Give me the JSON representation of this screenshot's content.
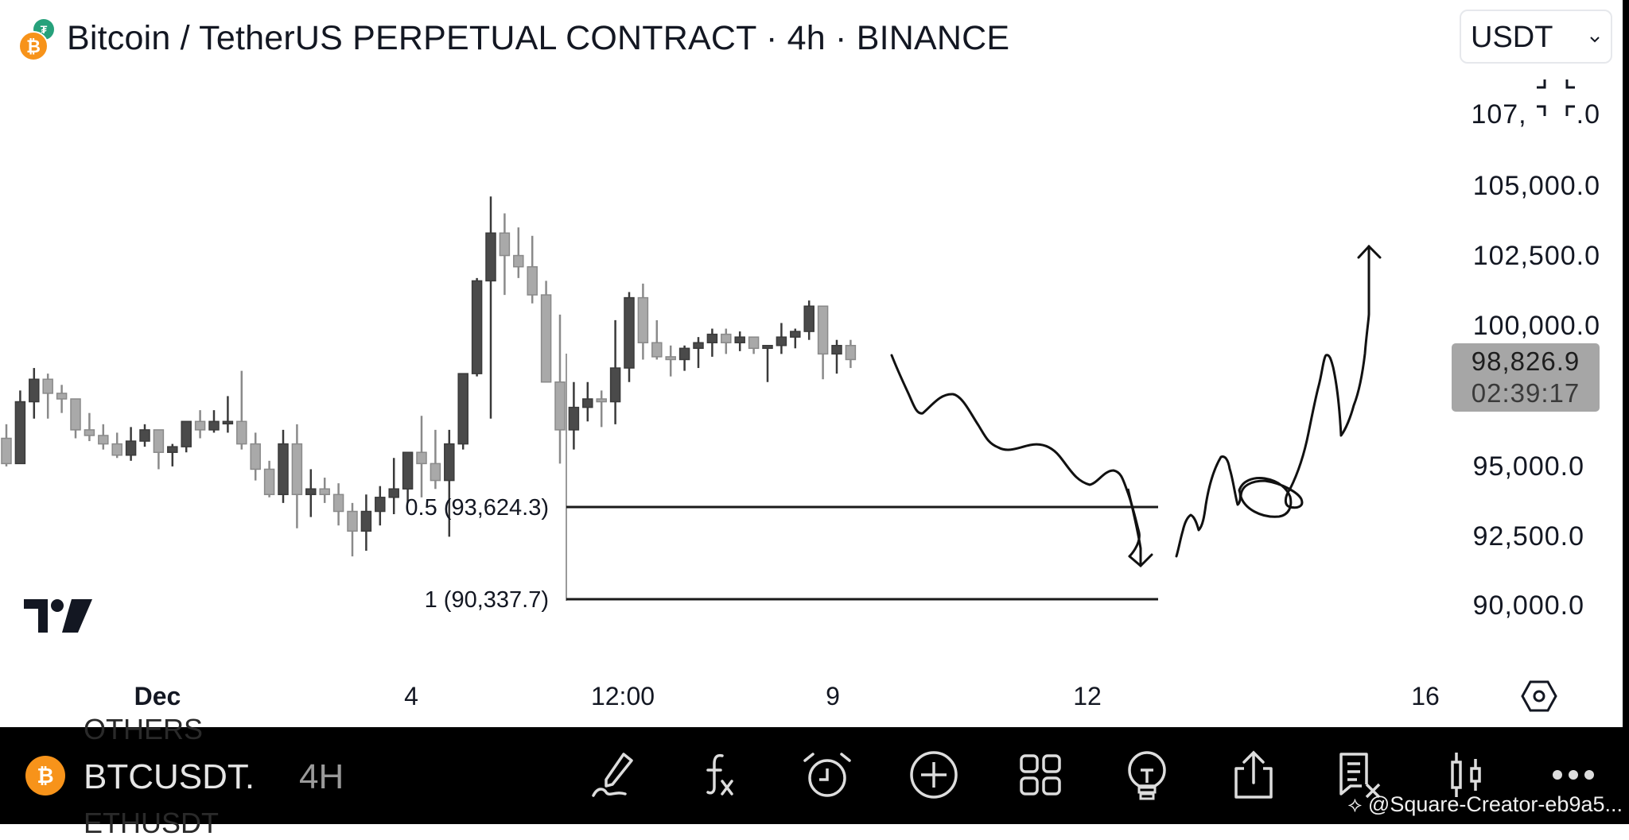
{
  "header": {
    "title": "Bitcoin / TetherUS PERPETUAL CONTRACT · 4h · BINANCE",
    "currency_select": "USDT",
    "icons": [
      "bitcoin-icon",
      "tether-icon",
      "chevron-down-icon",
      "fullscreen-collapse-icon"
    ]
  },
  "y_axis": {
    "labels": [
      {
        "text": "107,500.0",
        "value": 107500,
        "display": "107, ⌟⌞ .0"
      },
      {
        "text": "105,000.0",
        "value": 105000
      },
      {
        "text": "102,500.0",
        "value": 102500
      },
      {
        "text": "100,000.0",
        "value": 100000
      },
      {
        "text": "95,000.0",
        "value": 95000
      },
      {
        "text": "92,500.0",
        "value": 92500
      },
      {
        "text": "90,000.0",
        "value": 90000
      }
    ],
    "current_price": "98,826.9",
    "countdown": "02:39:17"
  },
  "x_axis": {
    "labels": [
      "Dec",
      "4",
      "12:00",
      "9",
      "12",
      "16"
    ]
  },
  "fib_levels": [
    {
      "label": "0.5 (93,624.3)",
      "level": 0.5,
      "price": 93624.3
    },
    {
      "label": "1 (90,337.7)",
      "level": 1,
      "price": 90337.7
    }
  ],
  "bottom_bar": {
    "symbol": "BTCUSDT.",
    "timeframe": "4H",
    "ghost_above": "OTHERS",
    "ghost_below": "ETHUSDT",
    "tools": [
      "draw-icon",
      "indicators-fx-icon",
      "alert-clock-icon",
      "add-circle-icon",
      "layout-grid-icon",
      "ideas-bulb-icon",
      "share-icon",
      "orders-icon",
      "chart-type-candles-icon",
      "more-icon"
    ],
    "watermark": "@Square-Creator-eb9a5..."
  },
  "colors": {
    "bull_candle": "#4a4a4a",
    "bear_candle": "#a9a9a9",
    "bitcoin_orange": "#f7931a",
    "tether_teal": "#26a17b",
    "price_box": "#a6a6a6",
    "bar_bg": "#000000"
  },
  "chart_data": {
    "type": "candlestick",
    "title": "Bitcoin / TetherUS PERPETUAL CONTRACT · 4h · BINANCE",
    "xlabel": "",
    "ylabel": "USDT",
    "ylim": [
      88500,
      108500
    ],
    "x_ticks": [
      "Dec",
      "4",
      "12:00",
      "9",
      "12",
      "16"
    ],
    "y_ticks": [
      90000,
      92500,
      95000,
      97500,
      100000,
      102500,
      105000,
      107500
    ],
    "grid": false,
    "last_price": 98826.9,
    "candles_ohlc_approx": [
      [
        96000,
        96500,
        95000,
        95100
      ],
      [
        95100,
        97700,
        95100,
        97300
      ],
      [
        97300,
        98500,
        96700,
        98100
      ],
      [
        98100,
        98300,
        96700,
        97600
      ],
      [
        97600,
        97900,
        96900,
        97400
      ],
      [
        97400,
        97400,
        96000,
        96300
      ],
      [
        96300,
        96900,
        95900,
        96100
      ],
      [
        96100,
        96500,
        95600,
        95800
      ],
      [
        95800,
        96200,
        95300,
        95400
      ],
      [
        95400,
        96400,
        95200,
        95900
      ],
      [
        95900,
        96500,
        95700,
        96300
      ],
      [
        96300,
        96300,
        94900,
        95500
      ],
      [
        95500,
        95800,
        95000,
        95700
      ],
      [
        95700,
        96600,
        95500,
        96600
      ],
      [
        96600,
        97000,
        96000,
        96300
      ],
      [
        96300,
        97000,
        96200,
        96600
      ],
      [
        96600,
        97500,
        96200,
        96600
      ],
      [
        96600,
        98400,
        95600,
        95800
      ],
      [
        95800,
        96200,
        94500,
        94900
      ],
      [
        94900,
        95200,
        93900,
        94000
      ],
      [
        94000,
        96300,
        93700,
        95800
      ],
      [
        95800,
        96500,
        92800,
        94000
      ],
      [
        94000,
        94900,
        93200,
        94200
      ],
      [
        94200,
        94600,
        93700,
        94000
      ],
      [
        94000,
        94400,
        92900,
        93400
      ],
      [
        93400,
        93700,
        91800,
        92700
      ],
      [
        92700,
        94000,
        92000,
        93400
      ],
      [
        93400,
        94300,
        92900,
        93900
      ],
      [
        93900,
        95300,
        93300,
        94200
      ],
      [
        94200,
        95500,
        93700,
        95500
      ],
      [
        95500,
        96800,
        93900,
        95100
      ],
      [
        95100,
        96300,
        94200,
        94500
      ],
      [
        94500,
        96300,
        92500,
        95800
      ],
      [
        95800,
        98300,
        95600,
        98300
      ],
      [
        98300,
        101700,
        98200,
        101600
      ],
      [
        101600,
        104600,
        96700,
        103300
      ],
      [
        103300,
        104000,
        101100,
        102500
      ],
      [
        102500,
        103500,
        101700,
        102100
      ],
      [
        102100,
        103200,
        100800,
        101100
      ],
      [
        101100,
        101600,
        98500,
        98000
      ],
      [
        98000,
        100400,
        95100,
        96300
      ],
      [
        96300,
        98000,
        95600,
        97100
      ],
      [
        97100,
        98000,
        96600,
        97400
      ],
      [
        97400,
        97700,
        96400,
        97300
      ],
      [
        97300,
        100200,
        96500,
        98500
      ],
      [
        98500,
        101200,
        98000,
        101000
      ],
      [
        101000,
        101500,
        98800,
        99400
      ],
      [
        99400,
        100200,
        98800,
        98900
      ],
      [
        98900,
        99300,
        98200,
        98800
      ],
      [
        98800,
        99300,
        98400,
        99200
      ],
      [
        99200,
        99600,
        98500,
        99400
      ],
      [
        99400,
        99900,
        98900,
        99700
      ],
      [
        99700,
        99900,
        99000,
        99400
      ],
      [
        99400,
        99800,
        99100,
        99600
      ],
      [
        99600,
        99600,
        99000,
        99200
      ],
      [
        99200,
        99300,
        98000,
        99300
      ],
      [
        99300,
        100100,
        99000,
        99600
      ],
      [
        99600,
        99900,
        99200,
        99800
      ],
      [
        99800,
        100900,
        99500,
        100700
      ],
      [
        100700,
        100700,
        98100,
        99000
      ],
      [
        99000,
        99500,
        98300,
        99300
      ],
      [
        99300,
        99500,
        98500,
        98800
      ]
    ],
    "annotations": [
      {
        "type": "fib_retracement",
        "levels": [
          {
            "level": 0.5,
            "price": 93624.3
          },
          {
            "level": 1,
            "price": 90337.7
          }
        ]
      },
      {
        "type": "freehand_projection",
        "description": "decline from ~99,000 to below 92,000 (arrow down)"
      },
      {
        "type": "freehand_projection",
        "description": "recovery from ~91,500 rising to above 102,500 (arrow up), with circled consolidation near 94,000"
      }
    ]
  }
}
